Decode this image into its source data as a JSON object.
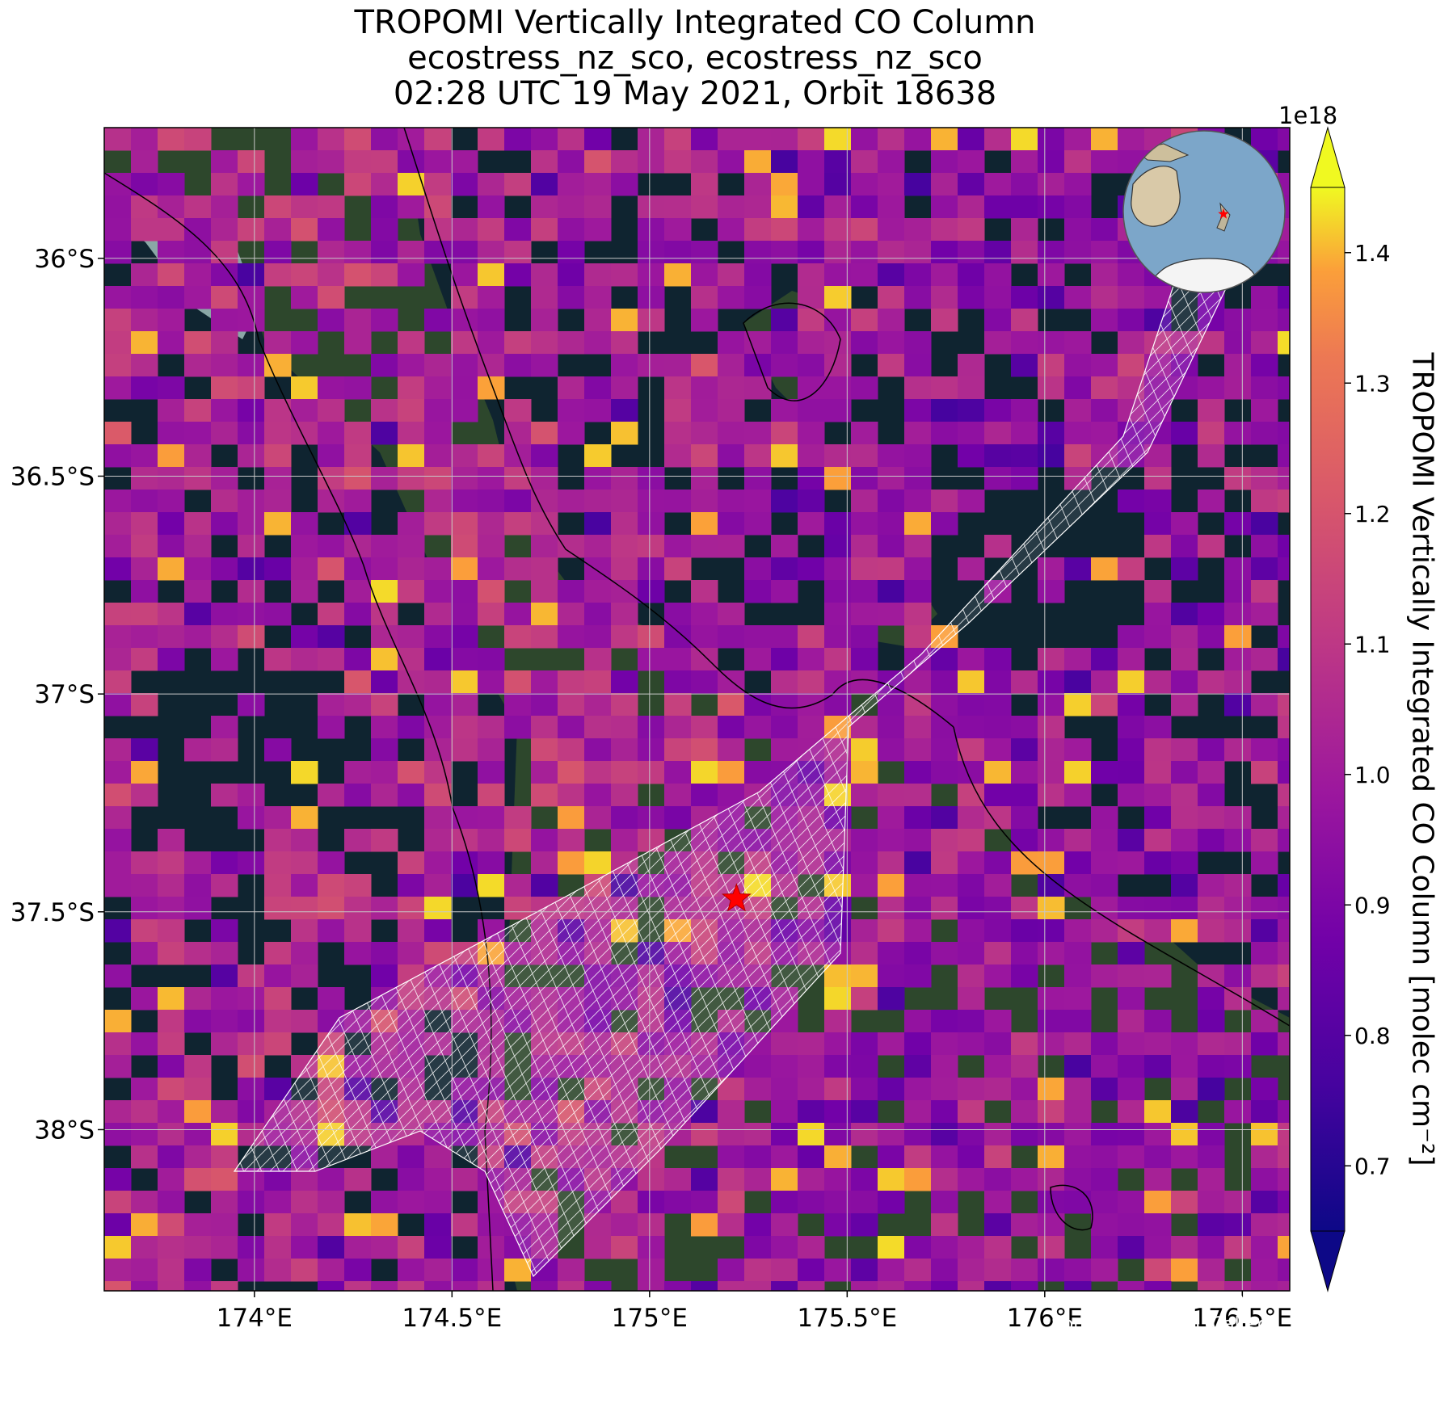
{
  "title": {
    "line1": "TROPOMI Vertically Integrated CO Column",
    "line2": "ecostress_nz_sco, ecostress_nz_sco",
    "line3": "02:28 UTC 19 May 2021, Orbit 18638"
  },
  "map": {
    "lon_range": [
      173.62,
      176.62
    ],
    "lat_range": [
      -38.37,
      -35.7
    ],
    "lon_ticks": [
      "174°E",
      "174.5°E",
      "175°E",
      "175.5°E",
      "176°E",
      "176.5°E"
    ],
    "lon_tick_values": [
      174.0,
      174.5,
      175.0,
      175.5,
      176.0,
      176.5
    ],
    "lat_ticks": [
      "36°S",
      "36.5°S",
      "37°S",
      "37.5°S",
      "38°S"
    ],
    "lat_tick_values": [
      -36.0,
      -36.5,
      -37.0,
      -37.5,
      -38.0
    ],
    "site_marker": {
      "lon": 175.22,
      "lat": -37.47,
      "symbol": "star",
      "color": "#ff0000"
    },
    "ocean_color": "#0f2430",
    "land_color": "#2f4a2c",
    "gridline_color": "#c8c8c8",
    "coastline_color": "#000000"
  },
  "colorbar": {
    "label": "TROPOMI Vertically Integrated CO Column [molec cm⁻²]",
    "exponent": "1e18",
    "range": [
      0.65,
      1.45
    ],
    "ticks": [
      "0.7",
      "0.8",
      "0.9",
      "1.0",
      "1.1",
      "1.2",
      "1.3",
      "1.4"
    ],
    "tick_values": [
      0.7,
      0.8,
      0.9,
      1.0,
      1.1,
      1.2,
      1.3,
      1.4
    ],
    "colormap": "plasma",
    "extend": "both"
  },
  "inset": {
    "type": "orthographic globe",
    "marker_color": "#ff0000"
  },
  "credits": {
    "line1": "Created 10 Oct 2024",
    "line2": "Source: NASA/JPL-Caltech"
  }
}
